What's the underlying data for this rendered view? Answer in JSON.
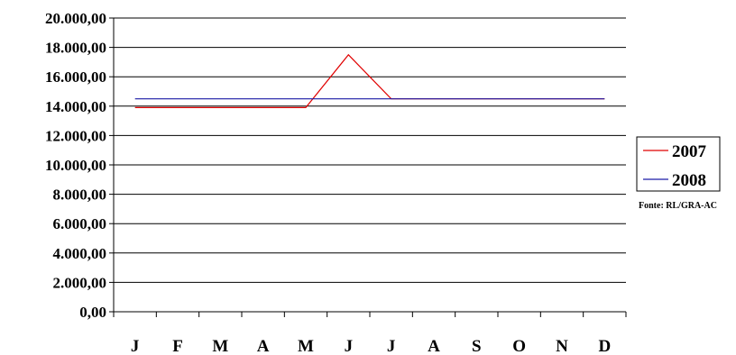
{
  "chart_data": {
    "type": "line",
    "categories": [
      "J",
      "F",
      "M",
      "A",
      "M",
      "J",
      "J",
      "A",
      "S",
      "O",
      "N",
      "D"
    ],
    "series": [
      {
        "name": "2007",
        "color": "#e00000",
        "values": [
          13900,
          13900,
          13900,
          13900,
          13900,
          17500,
          14500,
          14500,
          14500,
          14500,
          14500,
          14500
        ]
      },
      {
        "name": "2008",
        "color": "#1a1aa6",
        "values": [
          14500,
          14500,
          14500,
          14500,
          14500,
          14500,
          14500,
          14500,
          14500,
          14500,
          14500,
          14500
        ]
      }
    ],
    "ylim": [
      0,
      20000
    ],
    "yticks": [
      "0,00",
      "2.000,00",
      "4.000,00",
      "6.000,00",
      "8.000,00",
      "10.000,00",
      "12.000,00",
      "14.000,00",
      "16.000,00",
      "18.000,00",
      "20.000,00"
    ],
    "grid": true,
    "legend_position": "right",
    "source": "Fonte: RL/GRA-AC"
  }
}
